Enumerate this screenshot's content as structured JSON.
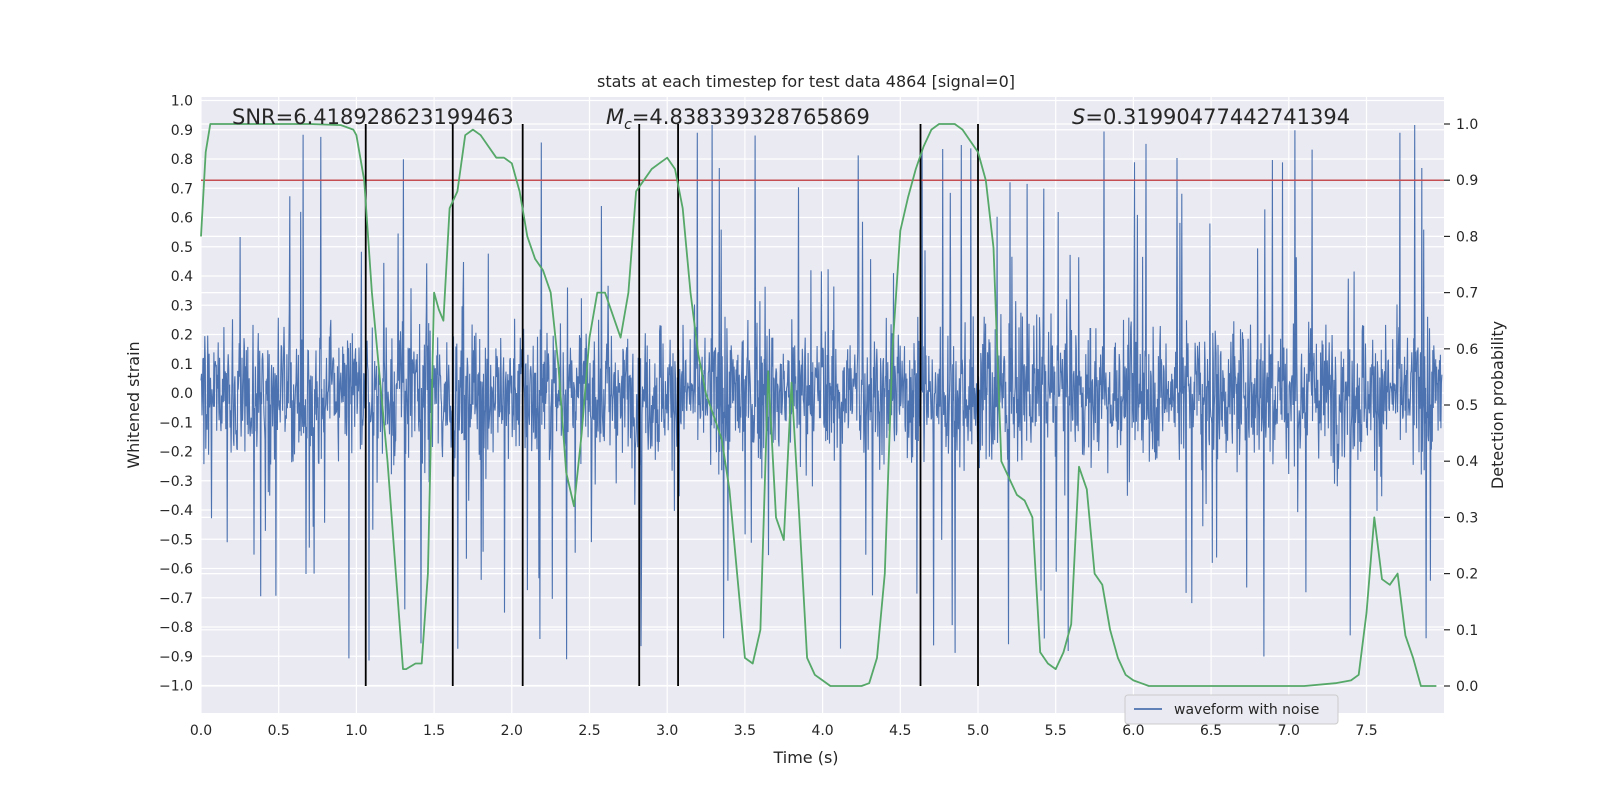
{
  "chart_data": {
    "type": "line",
    "title": "stats at each timestep for test data 4864 [signal=0]",
    "xlabel": "Time (s)",
    "ylabel": "Whitened strain",
    "y2label": "Detection probability",
    "xlim": [
      0.0,
      8.0
    ],
    "ylim": [
      -1.0,
      1.0
    ],
    "y2lim": [
      -0.045,
      1.045
    ],
    "xticks": [
      "0.0",
      "0.5",
      "1.0",
      "1.5",
      "2.0",
      "2.5",
      "3.0",
      "3.5",
      "4.0",
      "4.5",
      "5.0",
      "5.5",
      "6.0",
      "6.5",
      "7.0",
      "7.5"
    ],
    "xtick_values": [
      0.0,
      0.5,
      1.0,
      1.5,
      2.0,
      2.5,
      3.0,
      3.5,
      4.0,
      4.5,
      5.0,
      5.5,
      6.0,
      6.5,
      7.0,
      7.5
    ],
    "yticks": [
      "1.0",
      "0.9",
      "0.8",
      "0.7",
      "0.6",
      "0.5",
      "0.4",
      "0.3",
      "0.2",
      "0.1",
      "0.0",
      "−0.1",
      "−0.2",
      "−0.3",
      "−0.4",
      "−0.5",
      "−0.6",
      "−0.7",
      "−0.8",
      "−0.9",
      "−1.0"
    ],
    "ytick_values": [
      1.0,
      0.9,
      0.8,
      0.7,
      0.6,
      0.5,
      0.4,
      0.3,
      0.2,
      0.1,
      0.0,
      -0.1,
      -0.2,
      -0.3,
      -0.4,
      -0.5,
      -0.6,
      -0.7,
      -0.8,
      -0.9,
      -1.0
    ],
    "y2ticks": [
      "1.0",
      "0.9",
      "0.8",
      "0.7",
      "0.6",
      "0.5",
      "0.4",
      "0.3",
      "0.2",
      "0.1",
      "0.0"
    ],
    "y2tick_values": [
      1.0,
      0.9,
      0.8,
      0.7,
      0.6,
      0.5,
      0.4,
      0.3,
      0.2,
      0.1,
      0.0
    ],
    "annotations": {
      "snr": "SNR=6.418928623199463",
      "mc_symbol": "M",
      "mc_sub": "c",
      "mc_value": "=4.838339328765869",
      "s_symbol": "S",
      "s_value": "=0.31990477442741394"
    },
    "series": [
      {
        "name": "waveform with noise",
        "color": "#4c72b0",
        "axis": "left",
        "description": "whitened strain noise, core band ~±0.3, spikes to ~±0.9",
        "core_amplitude": 0.3,
        "spike_amplitude": 0.92
      },
      {
        "name": "detection probability",
        "color": "#55a868",
        "axis": "right",
        "x": [
          0.0,
          0.03,
          0.06,
          0.1,
          0.2,
          0.3,
          0.5,
          0.7,
          0.9,
          0.98,
          1.0,
          1.05,
          1.1,
          1.2,
          1.3,
          1.32,
          1.38,
          1.42,
          1.46,
          1.5,
          1.53,
          1.56,
          1.6,
          1.65,
          1.7,
          1.75,
          1.8,
          1.85,
          1.9,
          1.95,
          2.0,
          2.05,
          2.1,
          2.15,
          2.2,
          2.25,
          2.3,
          2.35,
          2.4,
          2.45,
          2.5,
          2.55,
          2.6,
          2.65,
          2.7,
          2.75,
          2.8,
          2.85,
          2.9,
          2.95,
          3.0,
          3.05,
          3.1,
          3.15,
          3.2,
          3.25,
          3.3,
          3.35,
          3.4,
          3.45,
          3.5,
          3.55,
          3.6,
          3.65,
          3.7,
          3.75,
          3.8,
          3.85,
          3.9,
          3.95,
          4.0,
          4.05,
          4.1,
          4.15,
          4.2,
          4.25,
          4.3,
          4.35,
          4.4,
          4.45,
          4.5,
          4.55,
          4.6,
          4.65,
          4.7,
          4.75,
          4.8,
          4.85,
          4.9,
          4.95,
          5.0,
          5.05,
          5.1,
          5.15,
          5.2,
          5.25,
          5.3,
          5.35,
          5.4,
          5.45,
          5.5,
          5.55,
          5.6,
          5.65,
          5.7,
          5.75,
          5.8,
          5.85,
          5.9,
          5.95,
          6.0,
          6.05,
          6.1,
          6.2,
          6.3,
          6.5,
          6.7,
          6.9,
          7.1,
          7.3,
          7.4,
          7.45,
          7.5,
          7.55,
          7.6,
          7.65,
          7.7,
          7.75,
          7.8,
          7.85,
          7.9,
          7.95
        ],
        "y": [
          0.8,
          0.95,
          1.0,
          1.0,
          1.0,
          1.0,
          1.0,
          1.0,
          0.998,
          0.99,
          0.98,
          0.9,
          0.7,
          0.4,
          0.03,
          0.03,
          0.04,
          0.04,
          0.2,
          0.7,
          0.67,
          0.65,
          0.85,
          0.88,
          0.98,
          0.99,
          0.98,
          0.96,
          0.94,
          0.94,
          0.93,
          0.88,
          0.8,
          0.76,
          0.74,
          0.7,
          0.57,
          0.38,
          0.32,
          0.45,
          0.62,
          0.7,
          0.7,
          0.66,
          0.62,
          0.7,
          0.88,
          0.9,
          0.92,
          0.93,
          0.94,
          0.92,
          0.85,
          0.7,
          0.59,
          0.52,
          0.48,
          0.44,
          0.35,
          0.2,
          0.05,
          0.04,
          0.1,
          0.56,
          0.3,
          0.26,
          0.54,
          0.3,
          0.05,
          0.02,
          0.01,
          0.0,
          0.0,
          0.0,
          0.0,
          0.0,
          0.005,
          0.05,
          0.2,
          0.6,
          0.81,
          0.87,
          0.92,
          0.96,
          0.99,
          1.0,
          1.0,
          1.0,
          0.99,
          0.97,
          0.95,
          0.9,
          0.78,
          0.4,
          0.37,
          0.34,
          0.33,
          0.3,
          0.06,
          0.04,
          0.03,
          0.06,
          0.11,
          0.39,
          0.35,
          0.2,
          0.18,
          0.1,
          0.05,
          0.02,
          0.01,
          0.005,
          0.0,
          0.0,
          0.0,
          0.0,
          0.0,
          0.0,
          0.0,
          0.005,
          0.01,
          0.02,
          0.13,
          0.3,
          0.19,
          0.18,
          0.2,
          0.09,
          0.05,
          0.0,
          0.0,
          0.0
        ]
      },
      {
        "name": "threshold",
        "color": "#c44e52",
        "axis": "right",
        "value": 0.9
      }
    ],
    "event_markers": {
      "color": "#000000",
      "x": [
        1.06,
        1.62,
        2.07,
        2.82,
        3.07,
        4.63,
        5.0
      ],
      "ymin": -1.0,
      "ymax": 1.0
    },
    "legend": {
      "position": "bottom-right",
      "entries": [
        "waveform with noise"
      ]
    },
    "grid": true,
    "background": "#eaeaf2"
  }
}
